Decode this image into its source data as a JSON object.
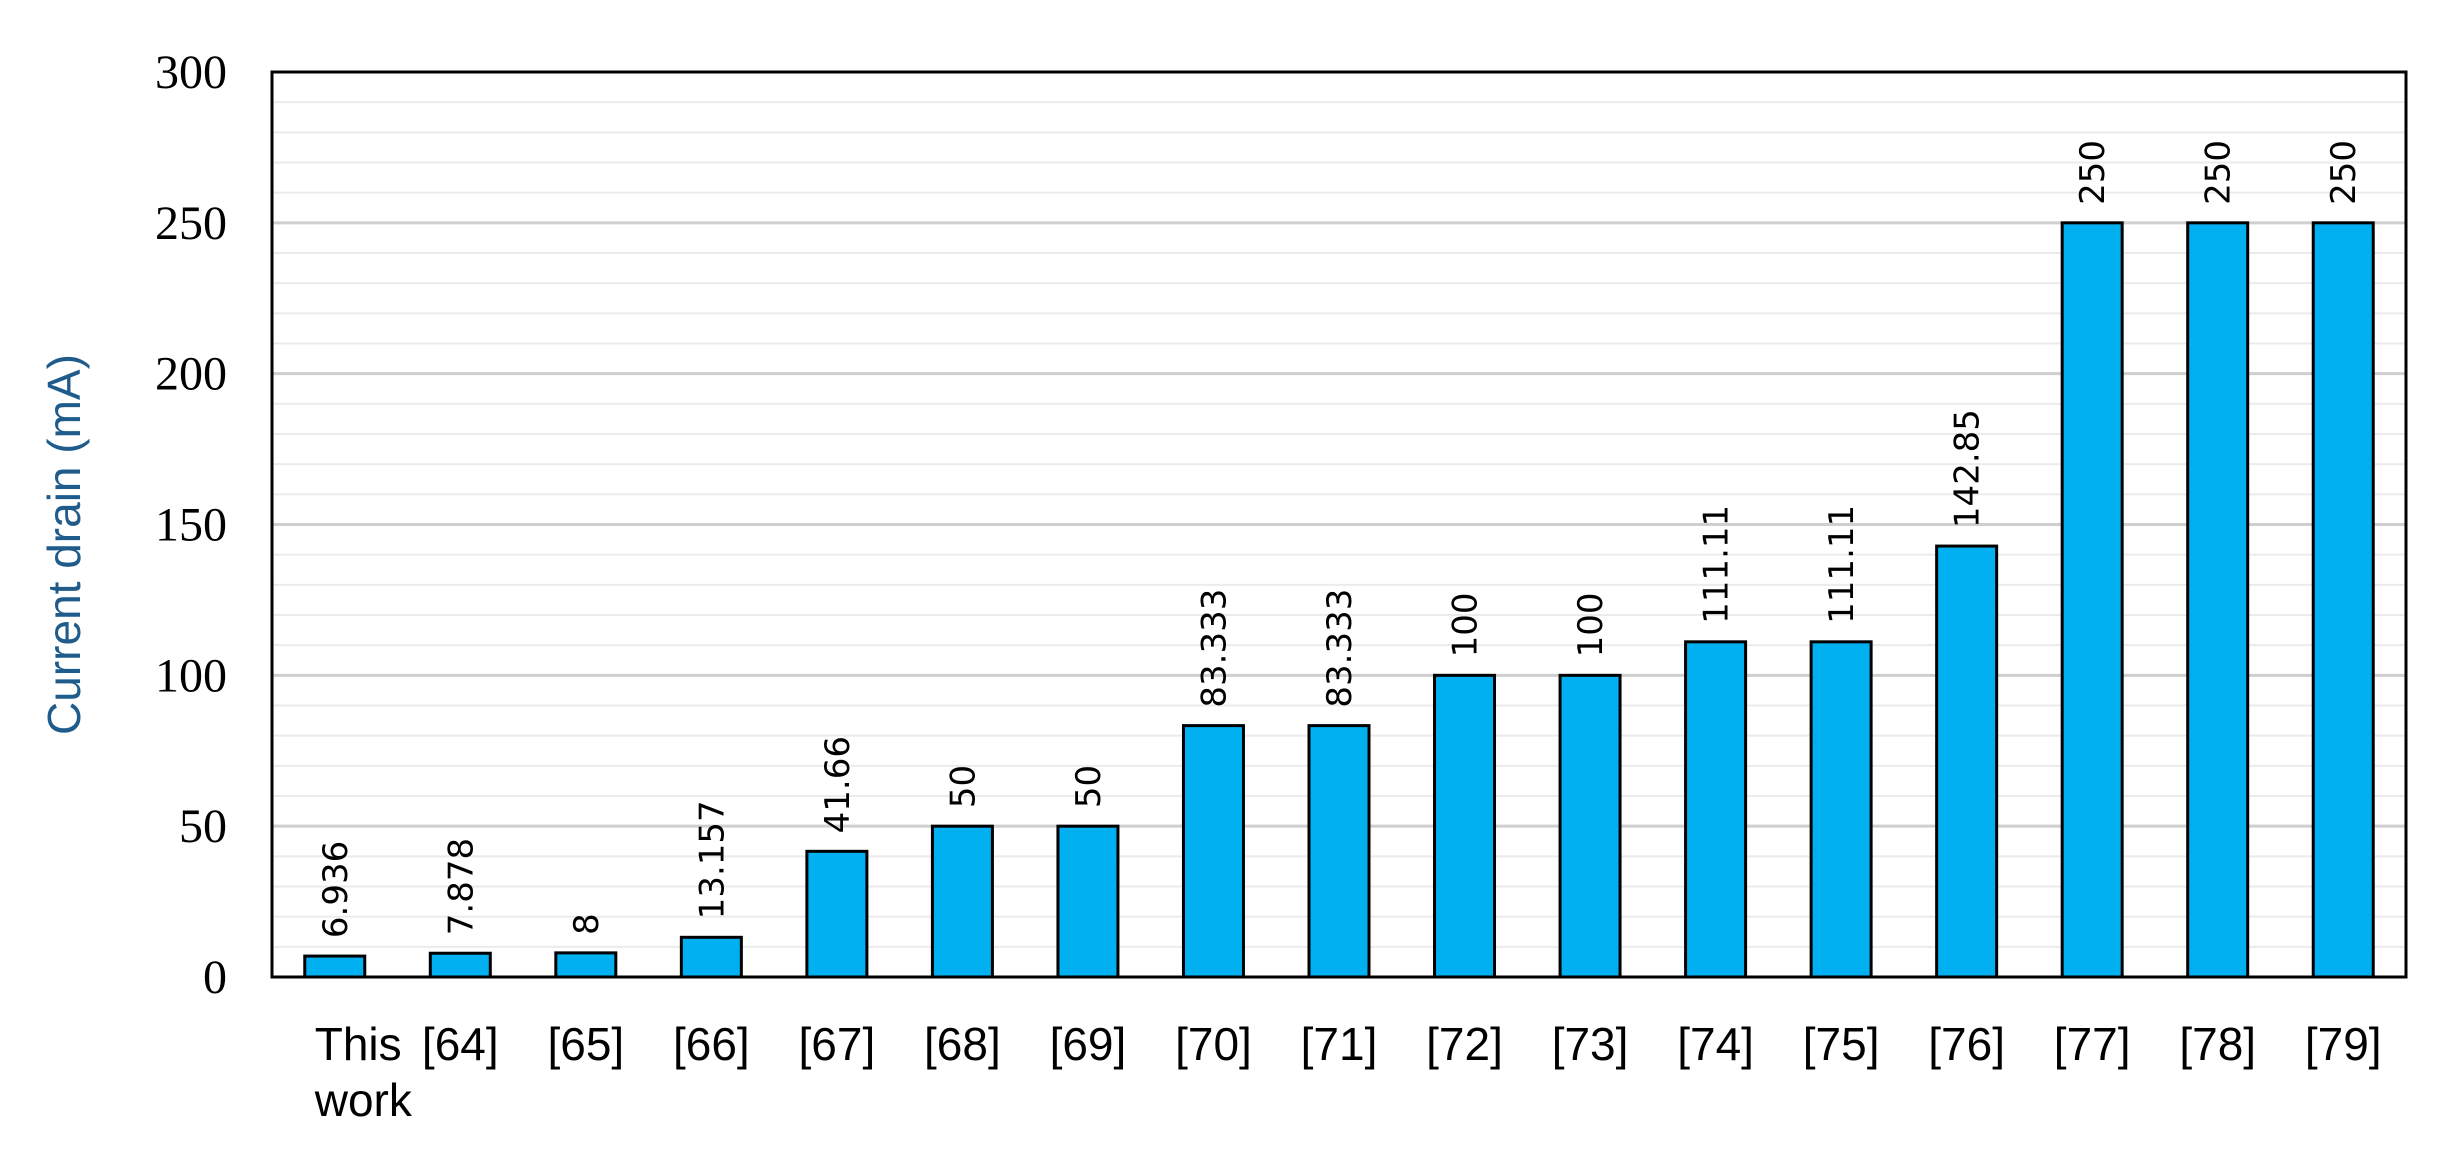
{
  "chart_data": {
    "type": "bar",
    "categories": [
      "This work",
      "[64]",
      "[65]",
      "[66]",
      "[67]",
      "[68]",
      "[69]",
      "[70]",
      "[71]",
      "[72]",
      "[73]",
      "[74]",
      "[75]",
      "[76]",
      "[77]",
      "[78]",
      "[79]"
    ],
    "values": [
      6.936,
      7.878,
      8,
      13.157,
      41.66,
      50,
      50,
      83.333,
      83.333,
      100,
      100,
      111.11,
      111.11,
      142.85,
      250,
      250,
      250
    ],
    "data_labels": [
      "6.936",
      "7.878",
      "8",
      "13.157",
      "41.66",
      "50",
      "50",
      "83.333",
      "83.333",
      "100",
      "100",
      "111.11",
      "111.11",
      "142.85",
      "250",
      "250",
      "250"
    ],
    "title": "",
    "xlabel": "",
    "ylabel": "Current drain (mA)",
    "ylim": [
      0,
      300
    ],
    "yticks": [
      "0",
      "50",
      "100",
      "150",
      "200",
      "250",
      "300"
    ],
    "grid": true,
    "legend": "none",
    "colors": {
      "bar_fill": "#00B0F0",
      "bar_stroke": "#000000",
      "ylabel": "#1F5C8B",
      "grid": "#D9D9D9"
    }
  }
}
